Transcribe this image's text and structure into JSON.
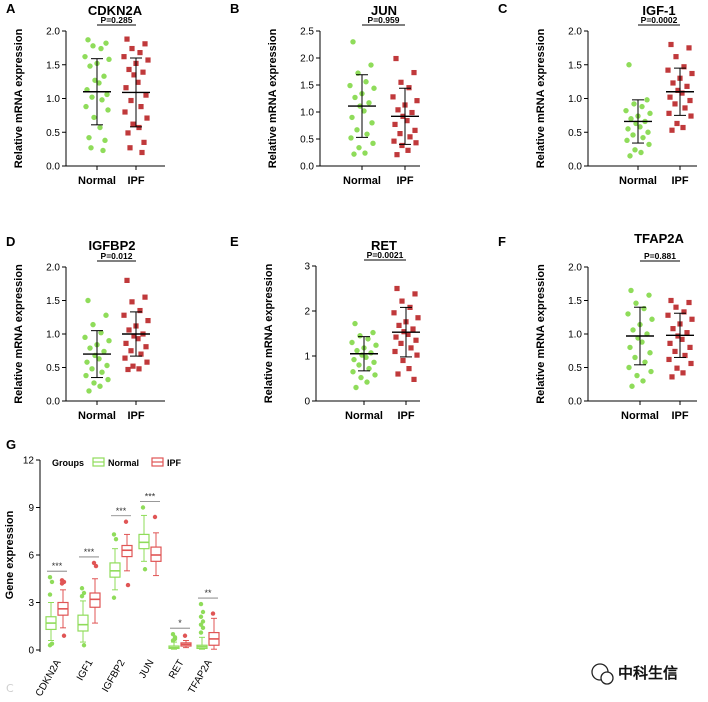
{
  "chart_data": [
    {
      "panel": "A",
      "title": "CDKN2A",
      "type": "scatter",
      "pvalue": "P=0.285",
      "ylabel": "Relative mRNA expression",
      "ylim": [
        0,
        2.0
      ],
      "yticks": [
        "0.0",
        "0.5",
        "1.0",
        "1.5",
        "2.0"
      ],
      "categories": [
        "Normal",
        "IPF"
      ],
      "series": [
        {
          "values": [
            1.87,
            1.82,
            1.78,
            1.74,
            1.62,
            1.58,
            1.52,
            1.48,
            1.33,
            1.27,
            1.23,
            1.13,
            1.06,
            1.02,
            0.98,
            0.88,
            0.83,
            0.72,
            0.57,
            0.42,
            0.38,
            0.27,
            0.23
          ],
          "mean": 1.1,
          "sd": 0.49
        },
        {
          "values": [
            1.88,
            1.81,
            1.74,
            1.68,
            1.62,
            1.57,
            1.52,
            1.43,
            1.39,
            1.35,
            1.24,
            1.16,
            1.05,
            0.97,
            0.88,
            0.8,
            0.71,
            0.62,
            0.57,
            0.49,
            0.35,
            0.27,
            0.2
          ],
          "mean": 1.09,
          "sd": 0.51
        }
      ]
    },
    {
      "panel": "B",
      "title": "JUN",
      "type": "scatter",
      "pvalue": "P=0.959",
      "ylabel": "Relative mRNA expression",
      "ylim": [
        0,
        2.5
      ],
      "yticks": [
        "0.0",
        "0.5",
        "1.0",
        "1.5",
        "2.0",
        "2.5"
      ],
      "categories": [
        "Normal",
        "IPF"
      ],
      "series": [
        {
          "values": [
            2.3,
            1.87,
            1.72,
            1.56,
            1.49,
            1.44,
            1.34,
            1.27,
            1.17,
            1.11,
            1.02,
            0.9,
            0.8,
            0.67,
            0.59,
            0.52,
            0.42,
            0.34,
            0.24,
            0.22
          ],
          "mean": 1.11,
          "sd": 0.58
        },
        {
          "values": [
            1.99,
            1.73,
            1.55,
            1.45,
            1.28,
            1.21,
            1.13,
            1.04,
            0.99,
            0.92,
            0.84,
            0.77,
            0.66,
            0.6,
            0.54,
            0.46,
            0.43,
            0.38,
            0.29,
            0.21
          ],
          "mean": 0.92,
          "sd": 0.52
        }
      ]
    },
    {
      "panel": "C",
      "title": "IGF-1",
      "type": "scatter",
      "pvalue": "P=0.0002",
      "ylabel": "Relative mRNA expression",
      "ylim": [
        0,
        2.0
      ],
      "yticks": [
        "0.0",
        "0.5",
        "1.0",
        "1.5",
        "2.0"
      ],
      "categories": [
        "Normal",
        "IPF"
      ],
      "series": [
        {
          "values": [
            1.5,
            0.98,
            0.92,
            0.88,
            0.82,
            0.78,
            0.74,
            0.7,
            0.66,
            0.63,
            0.58,
            0.55,
            0.5,
            0.46,
            0.42,
            0.38,
            0.32,
            0.24,
            0.2,
            0.15
          ],
          "mean": 0.66,
          "sd": 0.32
        },
        {
          "values": [
            1.8,
            1.75,
            1.62,
            1.47,
            1.42,
            1.37,
            1.3,
            1.23,
            1.18,
            1.12,
            1.08,
            1.02,
            0.97,
            0.92,
            0.86,
            0.78,
            0.74,
            0.63,
            0.57,
            0.53
          ],
          "mean": 1.1,
          "sd": 0.35
        }
      ]
    },
    {
      "panel": "D",
      "title": "IGFBP2",
      "type": "scatter",
      "pvalue": "P=0.012",
      "ylabel": "Relative mRNA expression",
      "ylim": [
        0,
        2.0
      ],
      "yticks": [
        "0.0",
        "0.5",
        "1.0",
        "1.5",
        "2.0"
      ],
      "categories": [
        "Normal",
        "IPF"
      ],
      "series": [
        {
          "values": [
            1.5,
            1.28,
            1.14,
            1.02,
            0.95,
            0.9,
            0.84,
            0.79,
            0.74,
            0.68,
            0.63,
            0.58,
            0.53,
            0.48,
            0.43,
            0.38,
            0.32,
            0.27,
            0.22,
            0.15
          ],
          "mean": 0.7,
          "sd": 0.35
        },
        {
          "values": [
            1.8,
            1.55,
            1.48,
            1.35,
            1.28,
            1.2,
            1.12,
            1.06,
            1.0,
            0.97,
            0.93,
            0.86,
            0.81,
            0.75,
            0.7,
            0.64,
            0.58,
            0.52,
            0.48,
            0.47
          ],
          "mean": 1.0,
          "sd": 0.33
        }
      ]
    },
    {
      "panel": "E",
      "title": "RET",
      "type": "scatter",
      "pvalue": "P=0.0021",
      "ylabel": "Relative mRNA expression",
      "ylim": [
        0,
        3
      ],
      "yticks": [
        "0",
        "1",
        "2",
        "3"
      ],
      "categories": [
        "Normal",
        "IPF"
      ],
      "series": [
        {
          "values": [
            1.72,
            1.52,
            1.45,
            1.38,
            1.3,
            1.24,
            1.18,
            1.12,
            1.07,
            1.02,
            0.97,
            0.92,
            0.86,
            0.8,
            0.72,
            0.65,
            0.58,
            0.52,
            0.42,
            0.3
          ],
          "mean": 1.05,
          "sd": 0.38
        },
        {
          "values": [
            2.5,
            2.38,
            2.22,
            2.08,
            1.96,
            1.85,
            1.76,
            1.68,
            1.6,
            1.54,
            1.48,
            1.42,
            1.35,
            1.28,
            1.18,
            1.1,
            1.02,
            0.9,
            0.72,
            0.6,
            0.48
          ],
          "mean": 1.53,
          "sd": 0.55
        }
      ]
    },
    {
      "panel": "F",
      "title": "TFAP2A",
      "type": "scatter",
      "pvalue": "P=0.881",
      "ylabel": "Relative mRNA expression",
      "ylim": [
        0,
        2.0
      ],
      "yticks": [
        "0.0",
        "0.5",
        "1.0",
        "1.5",
        "2.0"
      ],
      "categories": [
        "Normal",
        "IPF"
      ],
      "series": [
        {
          "values": [
            1.65,
            1.58,
            1.46,
            1.38,
            1.3,
            1.22,
            1.14,
            1.06,
            1.0,
            0.94,
            0.88,
            0.8,
            0.72,
            0.65,
            0.58,
            0.5,
            0.44,
            0.38,
            0.3,
            0.22
          ],
          "mean": 0.97,
          "sd": 0.43
        },
        {
          "values": [
            1.5,
            1.47,
            1.4,
            1.33,
            1.28,
            1.22,
            1.15,
            1.08,
            1.02,
            0.97,
            0.92,
            0.86,
            0.8,
            0.74,
            0.68,
            0.62,
            0.56,
            0.49,
            0.42,
            0.36
          ],
          "mean": 0.98,
          "sd": 0.33
        }
      ]
    },
    {
      "panel": "G",
      "type": "box",
      "ylabel": "Gene expression",
      "ylim": [
        0,
        12
      ],
      "yticks": [
        "0",
        "3",
        "6",
        "9",
        "12"
      ],
      "legend_title": "Groups",
      "categories": [
        "CDKN2A",
        "IGF1",
        "IGFBP2",
        "JUN",
        "RET",
        "TFAP2A"
      ],
      "significance": [
        "***",
        "***",
        "***",
        "***",
        "*",
        "**"
      ],
      "series": [
        {
          "name": "Normal",
          "color": "#8fdc5a",
          "boxes": [
            {
              "min": 0.6,
              "q1": 1.3,
              "median": 1.7,
              "q3": 2.1,
              "max": 3.0,
              "outliers": [
                4.6,
                4.3,
                3.5,
                0.4,
                0.3
              ]
            },
            {
              "min": 0.5,
              "q1": 1.2,
              "median": 1.6,
              "q3": 2.2,
              "max": 3.1,
              "outliers": [
                3.9,
                3.6,
                3.4,
                0.3
              ]
            },
            {
              "min": 3.8,
              "q1": 4.6,
              "median": 5.0,
              "q3": 5.5,
              "max": 6.4,
              "outliers": [
                7.3,
                7.0,
                3.3
              ]
            },
            {
              "min": 5.6,
              "q1": 6.4,
              "median": 6.8,
              "q3": 7.3,
              "max": 8.5,
              "outliers": [
                9.0,
                5.1
              ]
            },
            {
              "min": 0.05,
              "q1": 0.1,
              "median": 0.15,
              "q3": 0.25,
              "max": 0.5,
              "outliers": [
                1.0,
                0.8,
                0.6,
                0.7
              ]
            },
            {
              "min": 0.05,
              "q1": 0.1,
              "median": 0.2,
              "q3": 0.3,
              "max": 0.8,
              "outliers": [
                2.9,
                2.4,
                2.1,
                1.8,
                1.6,
                1.4,
                1.1
              ]
            }
          ]
        },
        {
          "name": "IPF",
          "color": "#e05555",
          "boxes": [
            {
              "min": 1.4,
              "q1": 2.2,
              "median": 2.6,
              "q3": 3.0,
              "max": 3.8,
              "outliers": [
                4.4,
                4.3,
                4.2,
                0.9
              ]
            },
            {
              "min": 1.7,
              "q1": 2.7,
              "median": 3.2,
              "q3": 3.6,
              "max": 4.5,
              "outliers": [
                5.5,
                5.3
              ]
            },
            {
              "min": 5.0,
              "q1": 5.9,
              "median": 6.3,
              "q3": 6.6,
              "max": 7.3,
              "outliers": [
                8.1,
                4.1
              ]
            },
            {
              "min": 4.7,
              "q1": 5.6,
              "median": 6.0,
              "q3": 6.5,
              "max": 7.4,
              "outliers": [
                8.4
              ]
            },
            {
              "min": 0.15,
              "q1": 0.25,
              "median": 0.35,
              "q3": 0.45,
              "max": 0.6,
              "outliers": [
                0.9
              ]
            },
            {
              "min": 0.05,
              "q1": 0.3,
              "median": 0.7,
              "q3": 1.1,
              "max": 2.0,
              "outliers": [
                2.3
              ]
            }
          ]
        }
      ]
    }
  ],
  "watermark": {
    "brand": "中科生信",
    "corner": "C"
  }
}
